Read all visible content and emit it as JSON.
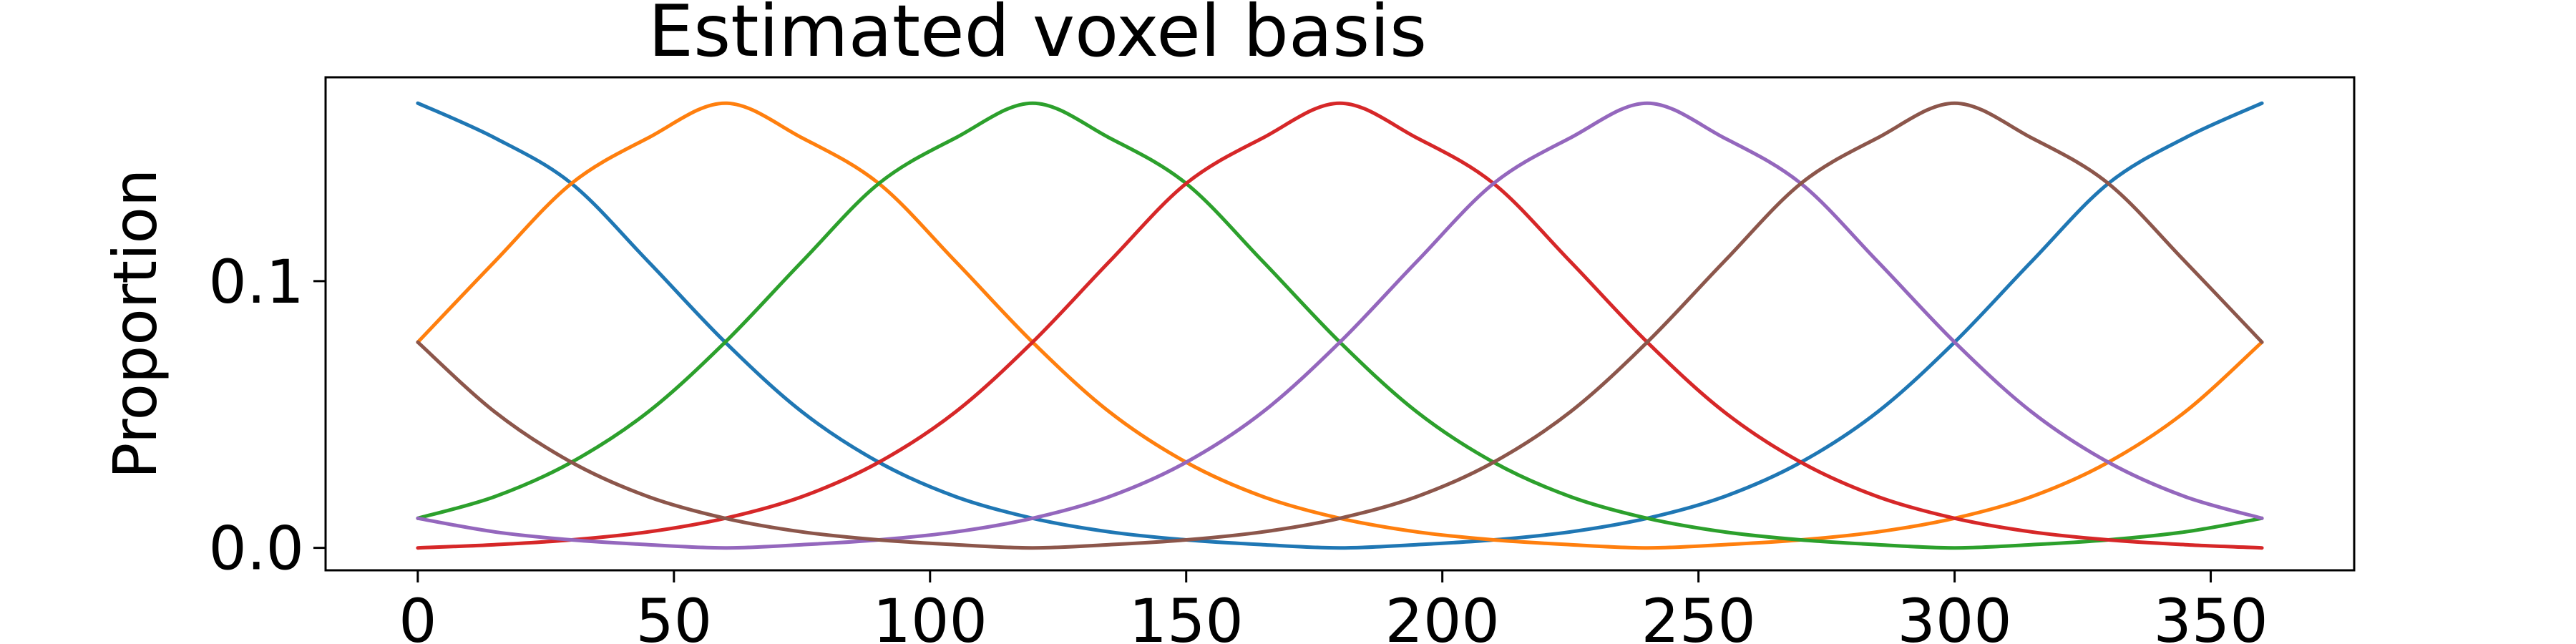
{
  "chart_data": {
    "type": "line",
    "title": "Estimated voxel basis",
    "xlabel": "",
    "ylabel": "Proportion",
    "xlim": [
      -18,
      378
    ],
    "ylim": [
      -0.0084,
      0.1764
    ],
    "x_ticks": [
      0,
      50,
      100,
      150,
      200,
      250,
      300,
      350
    ],
    "x_tick_labels": [
      "0",
      "50",
      "100",
      "150",
      "200",
      "250",
      "300",
      "350"
    ],
    "y_ticks": [
      0.0,
      0.1
    ],
    "y_tick_labels": [
      "0.0",
      "0.1"
    ],
    "grid": false,
    "legend": "none",
    "x": [
      0,
      15,
      30,
      45,
      60,
      75,
      90,
      105,
      120,
      135,
      150,
      165,
      180,
      195,
      210,
      225,
      240,
      255,
      270,
      285,
      300,
      315,
      330,
      345,
      360
    ],
    "series": [
      {
        "color": "#1f77b4",
        "values": [
          0.1667,
          0.1537,
          0.1366,
          0.1073,
          0.0771,
          0.051,
          0.0321,
          0.0192,
          0.0111,
          0.006,
          0.003,
          0.0012,
          0.0,
          0.0012,
          0.003,
          0.006,
          0.0111,
          0.0192,
          0.0321,
          0.051,
          0.0771,
          0.1073,
          0.1366,
          0.1537,
          0.1667
        ]
      },
      {
        "color": "#ff7f0e",
        "values": [
          0.0771,
          0.1073,
          0.1366,
          0.1537,
          0.1667,
          0.1537,
          0.1366,
          0.1073,
          0.0771,
          0.051,
          0.0321,
          0.0192,
          0.0111,
          0.006,
          0.003,
          0.0012,
          0.0,
          0.0012,
          0.003,
          0.006,
          0.0111,
          0.0192,
          0.0321,
          0.051,
          0.0771
        ]
      },
      {
        "color": "#2ca02c",
        "values": [
          0.0111,
          0.0192,
          0.0321,
          0.051,
          0.0771,
          0.1073,
          0.1366,
          0.1537,
          0.1667,
          0.1537,
          0.1366,
          0.1073,
          0.0771,
          0.051,
          0.0321,
          0.0192,
          0.0111,
          0.006,
          0.003,
          0.0012,
          0.0,
          0.0012,
          0.003,
          0.006,
          0.0111
        ]
      },
      {
        "color": "#d62728",
        "values": [
          0.0,
          0.0012,
          0.003,
          0.006,
          0.0111,
          0.0192,
          0.0321,
          0.051,
          0.0771,
          0.1073,
          0.1366,
          0.1537,
          0.1667,
          0.1537,
          0.1366,
          0.1073,
          0.0771,
          0.051,
          0.0321,
          0.0192,
          0.0111,
          0.006,
          0.003,
          0.0012,
          0.0
        ]
      },
      {
        "color": "#9467bd",
        "values": [
          0.0111,
          0.006,
          0.003,
          0.0012,
          0.0,
          0.0012,
          0.003,
          0.006,
          0.0111,
          0.0192,
          0.0321,
          0.051,
          0.0771,
          0.1073,
          0.1366,
          0.1537,
          0.1667,
          0.1537,
          0.1366,
          0.1073,
          0.0771,
          0.051,
          0.0321,
          0.0192,
          0.0111
        ]
      },
      {
        "color": "#8c564b",
        "values": [
          0.0771,
          0.051,
          0.0321,
          0.0192,
          0.0111,
          0.006,
          0.003,
          0.0012,
          0.0,
          0.0012,
          0.003,
          0.006,
          0.0111,
          0.0192,
          0.0321,
          0.051,
          0.0771,
          0.1073,
          0.1366,
          0.1537,
          0.1667,
          0.1537,
          0.1366,
          0.1073,
          0.0771
        ]
      }
    ]
  }
}
